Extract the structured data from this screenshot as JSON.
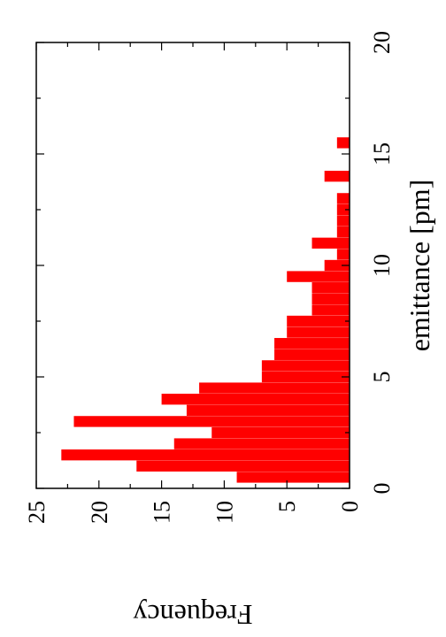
{
  "chart_data": {
    "type": "bar",
    "orientation": "rotated-90-cw",
    "bar_color": "#ff0000",
    "xlabel": "emittance [pm]",
    "ylabel": "Frequency",
    "xlim": [
      0,
      20
    ],
    "ylim": [
      0,
      25
    ],
    "x_ticks": [
      0,
      5,
      10,
      15,
      20
    ],
    "y_ticks": [
      0,
      5,
      10,
      15,
      20,
      25
    ],
    "bin_width": 0.5,
    "bins": [
      {
        "x": 0.5,
        "value": 9
      },
      {
        "x": 1.0,
        "value": 17
      },
      {
        "x": 1.5,
        "value": 23
      },
      {
        "x": 2.0,
        "value": 14
      },
      {
        "x": 2.5,
        "value": 11
      },
      {
        "x": 3.0,
        "value": 22
      },
      {
        "x": 3.5,
        "value": 13
      },
      {
        "x": 4.0,
        "value": 15
      },
      {
        "x": 4.5,
        "value": 12
      },
      {
        "x": 5.0,
        "value": 7
      },
      {
        "x": 5.5,
        "value": 7
      },
      {
        "x": 6.0,
        "value": 6
      },
      {
        "x": 6.5,
        "value": 6
      },
      {
        "x": 7.0,
        "value": 5
      },
      {
        "x": 7.5,
        "value": 5
      },
      {
        "x": 8.0,
        "value": 3
      },
      {
        "x": 8.5,
        "value": 3
      },
      {
        "x": 9.0,
        "value": 3
      },
      {
        "x": 9.5,
        "value": 5
      },
      {
        "x": 10.0,
        "value": 2
      },
      {
        "x": 10.5,
        "value": 1
      },
      {
        "x": 11.0,
        "value": 3
      },
      {
        "x": 11.5,
        "value": 1
      },
      {
        "x": 12.0,
        "value": 1
      },
      {
        "x": 12.5,
        "value": 1
      },
      {
        "x": 13.0,
        "value": 1
      },
      {
        "x": 14.0,
        "value": 2
      },
      {
        "x": 15.5,
        "value": 1
      }
    ]
  }
}
